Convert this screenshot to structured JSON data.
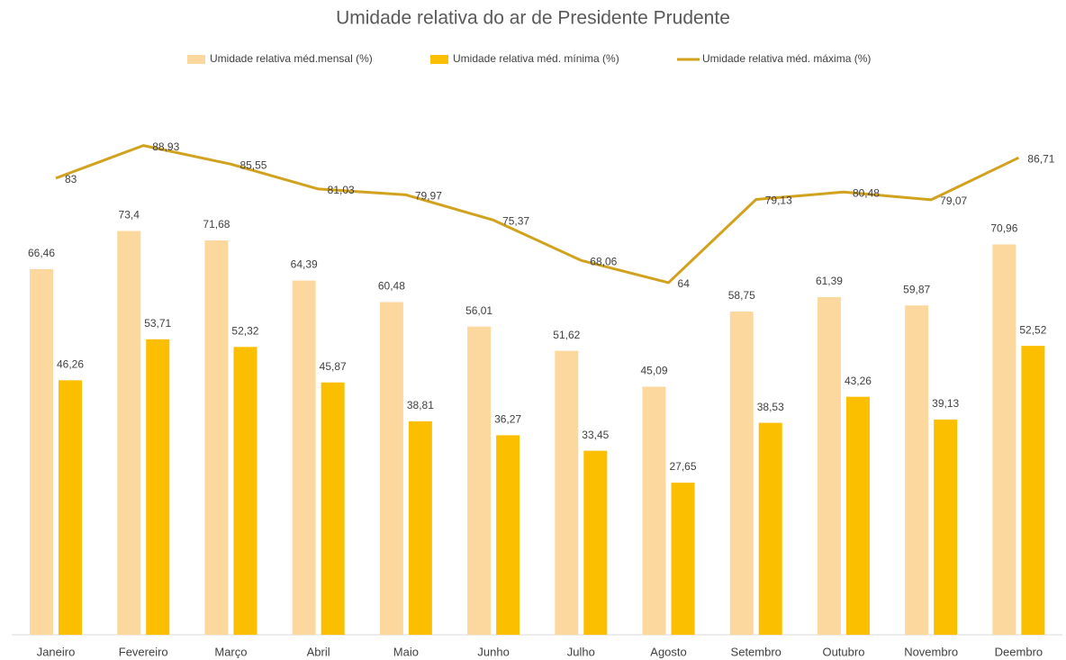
{
  "chart_data": {
    "type": "bar_line",
    "title": "Umidade relativa do ar de Presidente Prudente",
    "categories": [
      "Janeiro",
      "Fevereiro",
      "Março",
      "Abril",
      "Maio",
      "Junho",
      "Julho",
      "Agosto",
      "Setembro",
      "Outubro",
      "Novembro",
      "Deembro"
    ],
    "ylim": [
      0,
      100
    ],
    "series": [
      {
        "name": "Umidade relativa méd.mensal (%)",
        "type": "bar",
        "color": "#fdd89e",
        "values": [
          66.46,
          73.4,
          71.68,
          64.39,
          60.48,
          56.01,
          51.62,
          45.09,
          58.75,
          61.39,
          59.87,
          70.96
        ],
        "value_labels": [
          "66,46",
          "73,4",
          "71,68",
          "64,39",
          "60,48",
          "56,01",
          "51,62",
          "45,09",
          "58,75",
          "61,39",
          "59,87",
          "70,96"
        ]
      },
      {
        "name": "Umidade relativa méd. mínima (%)",
        "type": "bar",
        "color": "#fbbf00",
        "values": [
          46.26,
          53.71,
          52.32,
          45.87,
          38.81,
          36.27,
          33.45,
          27.65,
          38.53,
          43.26,
          39.13,
          52.52
        ],
        "value_labels": [
          "46,26",
          "53,71",
          "52,32",
          "45,87",
          "38,81",
          "36,27",
          "33,45",
          "27,65",
          "38,53",
          "43,26",
          "39,13",
          "52,52"
        ]
      },
      {
        "name": "Umidade relativa méd. máxima (%)",
        "type": "line",
        "color": "#d1a21e",
        "values": [
          83,
          88.93,
          85.55,
          81.03,
          79.97,
          75.37,
          68.06,
          64,
          79.13,
          80.48,
          79.07,
          86.71
        ],
        "value_labels": [
          "83",
          "88,93",
          "85,55",
          "81,03",
          "79,97",
          "75,37",
          "68,06",
          "64",
          "79,13",
          "80,48",
          "79,07",
          "86,71"
        ]
      }
    ]
  }
}
